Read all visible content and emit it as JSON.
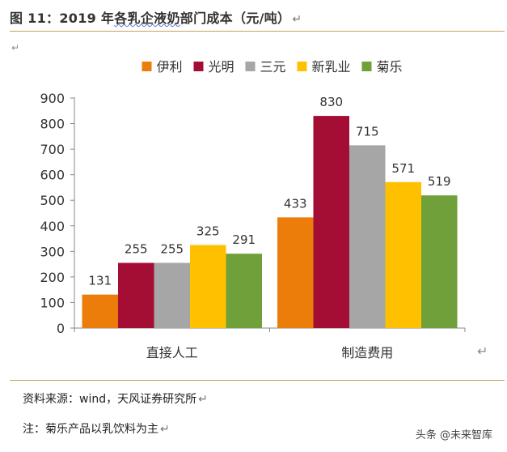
{
  "figure": {
    "title_prefix": "图 11：2019 年",
    "title_squiggled": "各乳企液奶",
    "title_rest": "部门成本（元/吨）",
    "para_mark": "↵"
  },
  "source": {
    "text": "资料来源：wind，天风证券研究所"
  },
  "note": {
    "text": "注：菊乐产品以乳饮料为主"
  },
  "watermark": {
    "text": "头条 @未来智库"
  },
  "chart_data": {
    "type": "bar",
    "categories": [
      "直接人工",
      "制造费用"
    ],
    "series": [
      {
        "name": "伊利",
        "values": [
          131,
          433
        ],
        "color": "#ed7d0a"
      },
      {
        "name": "光明",
        "values": [
          255,
          830
        ],
        "color": "#a50e34"
      },
      {
        "name": "三元",
        "values": [
          255,
          715
        ],
        "color": "#a6a6a6"
      },
      {
        "name": "新乳业",
        "values": [
          325,
          571
        ],
        "color": "#ffc000"
      },
      {
        "name": "菊乐",
        "values": [
          291,
          519
        ],
        "color": "#70a03a"
      }
    ],
    "ylim": [
      0,
      900
    ],
    "yticks": [
      0,
      100,
      200,
      300,
      400,
      500,
      600,
      700,
      800,
      900
    ],
    "grid": false,
    "legend_position": "top-center",
    "data_labels": true
  }
}
